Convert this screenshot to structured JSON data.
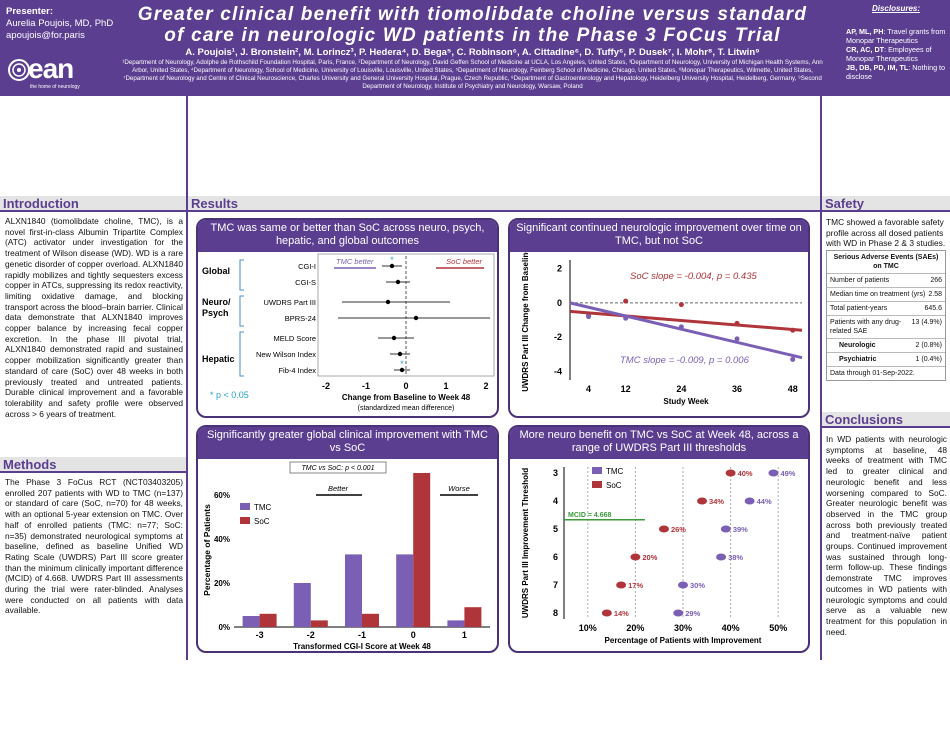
{
  "header": {
    "presenter_label": "Presenter:",
    "presenter_name": "Aurelia Poujois, MD, PhD",
    "presenter_email": "apoujois@for.paris",
    "logo_text": "ean",
    "logo_sub": "the home of neurology",
    "title_line1": "Greater clinical benefit with tiomolibdate choline versus standard",
    "title_line2": "of care in neurologic WD patients in the Phase 3 FoCus Trial",
    "authors": "A. Poujois¹, J. Bronstein², M. Lorincz³, P. Hedera⁴, D. Bega⁵, C. Robinson⁶, A. Cittadine⁶, D. Tuffy⁶, P. Dusek⁷, I. Mohr⁸, T. Litwin⁹",
    "affiliations": "¹Department of Neurology, Adolphe de Rothschild Foundation Hospital, Paris, France, ²Department of Neurology, David Geffen School of Medicine at UCLA, Los Angeles, United States, ³Department of Neurology, University of Michigan Health Systems, Ann Arbor, United States, ⁴Department of Neurology, School of Medicine, University of Louisville, Louisville, United States, ⁵Department of Neurology, Feinberg School of Medicine, Chicago, United States, ⁶Monopar Therapeutics, Wilmette, United States, ⁷Department of Neurology and Centre of Clinical Neuroscience, Charles University and General University Hospital, Prague, Czech Republic, ⁸Department of Gastroenterology and Hepatology, Heidelberg University Hospital, Heidelberg, Germany, ⁹Second Department of Neurology, Institute of Psychiatry and Neurology, Warsaw, Poland",
    "disclosures_title": "Disclosures:",
    "disclosures": [
      {
        "who": "AP, ML, PH",
        "what": ": Travel grants from Monopar Therapeutics"
      },
      {
        "who": "CR, AC, DT",
        "what": ": Employees of Monopar Therapeutics"
      },
      {
        "who": "JB, DB, PD, IM, TL",
        "what": ": Nothing to disclose"
      }
    ]
  },
  "intro": {
    "heading": "Introduction",
    "text": "ALXN1840 (tiomolibdate choline, TMC), is a novel first-in-class Albumin Tripartite Complex (ATC) activator under investigation for the treatment of Wilson disease (WD). WD is a rare genetic disorder of copper overload. ALXN1840 rapidly mobilizes and tightly sequesters excess copper in ATCs, suppressing its redox reactivity, limiting oxidative damage, and blocking transport across the blood–brain barrier. Clinical data demonstrate that ALXN1840 improves copper balance by increasing fecal copper excretion. In the phase III pivotal trial, ALXN1840 demonstrated rapid and sustained copper mobilization significantly greater than standard of care (SoC) over 48 weeks in both previously treated and untreated patients. Durable clinical improvement and a favorable tolerability and safety profile were observed across > 6 years of treatment."
  },
  "methods": {
    "heading": "Methods",
    "text": "The Phase 3 FoCus RCT (NCT03403205) enrolled 207 patients with WD to TMC (n=137) or standard of care (SoC, n=70) for 48 weeks, with an optional 5-year extension on TMC. Over half of enrolled patients (TMC: n=77; SoC: n=35) demonstrated neurological symptoms at baseline, defined as baseline Unified WD Rating Scale (UWDRS) Part III score greater than the minimum clinically important difference (MCID) of 4.668. UWDRS Part III assessments during the trial were rater-blinded. Analyses were conducted on all patients with data available."
  },
  "results_heading": "Results",
  "safety": {
    "heading": "Safety",
    "text": "TMC showed a favorable safety profile across all dosed patients with WD in Phase 2 & 3 studies.",
    "table_title": "Serious Adverse Events (SAEs) on TMC",
    "rows": [
      {
        "label": "Number of patients",
        "value": "266"
      },
      {
        "label": "Median time on treatment (yrs)",
        "value": "2.58"
      },
      {
        "label": "Total patient-years",
        "value": "645.6"
      },
      {
        "label": "Patients with any drug-related SAE",
        "value": "13 (4.9%)"
      },
      {
        "label": "Neurologic",
        "value": "2 (0.8%)"
      },
      {
        "label": "Psychiatric",
        "value": "1 (0.4%)"
      }
    ],
    "footnote": "Data through 01-Sep-2022."
  },
  "conclusions": {
    "heading": "Conclusions",
    "text": "In WD patients with neurologic symptoms at baseline, 48 weeks of treatment with TMC led to greater clinical and neurologic benefit and less worsening compared to SoC. Greater neurologic benefit was observed in the TMC group across both previously treated and treatment-naïve patient groups. Continued improvement was sustained through long-term follow-up. These findings demonstrate TMC improves outcomes in WD patients with neurologic symptoms and could serve as a valuable new treatment for this population in need."
  },
  "panels": {
    "p1": "TMC was same or better than SoC across neuro, psych, hepatic, and global outcomes",
    "p2": "Significant continued neurologic improvement over time on TMC, but not SoC",
    "p3": "Significantly greater global clinical improvement with TMC vs SoC",
    "p4": "More neuro benefit on TMC vs SoC at Week 48, across a range of UWDRS Part III thresholds"
  },
  "colors": {
    "purple": "#5b3e8f",
    "tmc": "#7a5fb5",
    "soc": "#b0353a"
  },
  "chart_data": [
    {
      "type": "scatter",
      "xlabel": "Change from Baseline to Week 48",
      "xlabel2": "(standardized mean difference)",
      "xlim": [
        -2,
        2
      ],
      "xticks": [
        "-2",
        "-1",
        "0",
        "1",
        "2"
      ],
      "groups": [
        "Global",
        "Neuro/ Psych",
        "Hepatic"
      ],
      "annot_left": "TMC better",
      "annot_right": "SoC better",
      "sig_note": "* p < 0.05",
      "items": [
        {
          "label": "CGI-I",
          "value": -0.35,
          "lo": -0.6,
          "hi": -0.1,
          "sig": true
        },
        {
          "label": "CGI-S",
          "value": -0.2,
          "lo": -0.5,
          "hi": 0.1,
          "sig": false
        },
        {
          "label": "UWDRS Part III",
          "value": -0.45,
          "lo": -1.6,
          "hi": 1.1,
          "sig": false
        },
        {
          "label": "BPRS-24",
          "value": 0.25,
          "lo": -1.7,
          "hi": 2.1,
          "sig": false
        },
        {
          "label": "MELD Score",
          "value": -0.3,
          "lo": -0.7,
          "hi": 0.2,
          "sig": false
        },
        {
          "label": "New Wilson Index",
          "value": -0.15,
          "lo": -0.4,
          "hi": 0.1,
          "sig": false
        },
        {
          "label": "Fib-4 Index",
          "value": -0.1,
          "lo": -0.3,
          "hi": 0.1,
          "sig": true
        }
      ]
    },
    {
      "type": "line",
      "ylabel": "UWDRS Part III Change from Baseline",
      "xlabel": "Study Week",
      "xticks": [
        "4",
        "12",
        "24",
        "36",
        "48"
      ],
      "yticks": [
        "2",
        "0",
        "-2",
        "-4"
      ],
      "ylim": [
        -4.5,
        2.5
      ],
      "soc_note": "SoC slope = -0.004, p = 0.435",
      "tmc_note": "TMC slope = -0.009, p = 0.006",
      "series": [
        {
          "name": "SoC",
          "line": [
            [
              0,
              -0.5
            ],
            [
              50,
              -1.6
            ]
          ],
          "points": [
            [
              4,
              -0.75
            ],
            [
              12,
              0.1
            ],
            [
              24,
              -0.1
            ],
            [
              36,
              -1.2
            ],
            [
              48,
              -1.6
            ]
          ]
        },
        {
          "name": "TMC",
          "line": [
            [
              0,
              0
            ],
            [
              50,
              -3.2
            ]
          ],
          "points": [
            [
              4,
              -0.8
            ],
            [
              12,
              -0.9
            ],
            [
              24,
              -1.4
            ],
            [
              36,
              -2.1
            ],
            [
              48,
              -3.3
            ]
          ]
        }
      ]
    },
    {
      "type": "bar",
      "ylabel": "Percentage of Patients",
      "xlabel": "Transformed CGI-I Score at Week 48",
      "categories": [
        "-3",
        "-2",
        "-1",
        "0",
        "1"
      ],
      "yticks": [
        "0%",
        "20%",
        "40%",
        "60%"
      ],
      "ylim": [
        0,
        70
      ],
      "annot": "TMC vs SoC: p < 0.001",
      "better": "Better",
      "worse": "Worse",
      "series": [
        {
          "name": "TMC",
          "values": [
            5,
            20,
            33,
            33,
            3
          ]
        },
        {
          "name": "SoC",
          "values": [
            6,
            3,
            6,
            70,
            9
          ]
        }
      ]
    },
    {
      "type": "scatter",
      "ylabel": "UWDRS Part III Improvement Threshold",
      "xlabel": "Percentage of Patients with Improvement",
      "xticks": [
        "10%",
        "20%",
        "30%",
        "40%",
        "50%"
      ],
      "yticks": [
        "3",
        "4",
        "5",
        "6",
        "7",
        "8"
      ],
      "mcid": "MCID = 4.668",
      "series": [
        {
          "name": "TMC",
          "values": [
            49,
            44,
            39,
            38,
            30,
            29
          ],
          "labels": [
            "49%",
            "44%",
            "39%",
            "38%",
            "30%",
            "29%"
          ]
        },
        {
          "name": "SoC",
          "values": [
            40,
            34,
            26,
            20,
            17,
            14
          ],
          "labels": [
            "40%",
            "34%",
            "26%",
            "20%",
            "17%",
            "14%"
          ]
        }
      ]
    }
  ]
}
